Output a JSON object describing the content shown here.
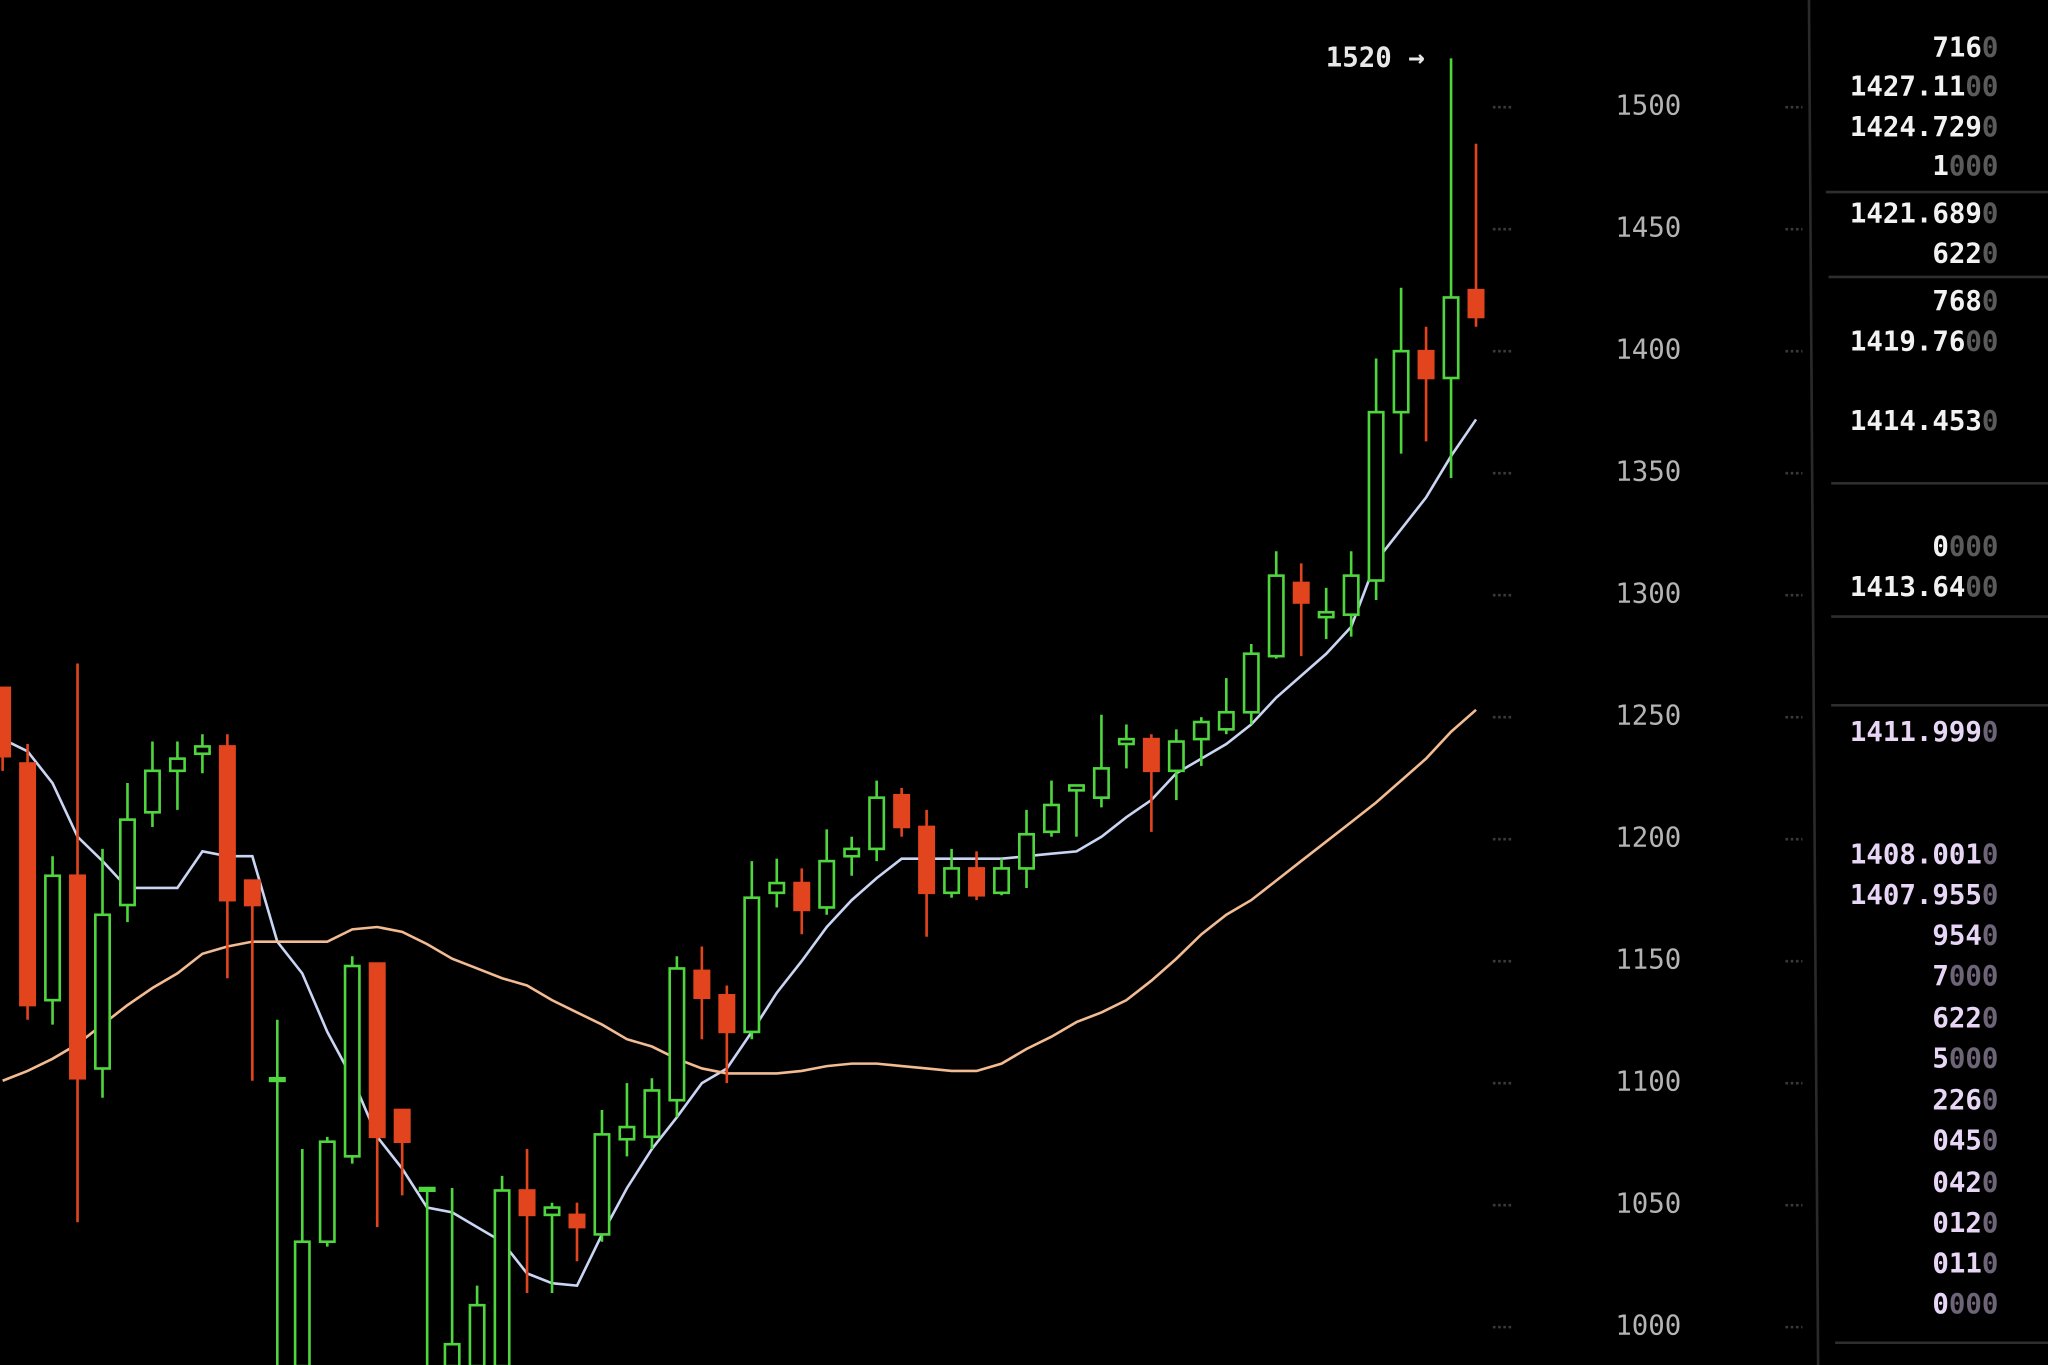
{
  "chart_data": {
    "type": "candlestick",
    "annotation": "1520 →",
    "up_color": "#4fd63e",
    "down_color": "#e2451e",
    "ylim": [
      984.5,
      1543.9
    ],
    "yticks": [
      1000,
      1050,
      1100,
      1150,
      1200,
      1250,
      1300,
      1350,
      1400,
      1450,
      1500
    ],
    "open": [
      1262,
      1231,
      1134,
      1185,
      1106,
      1173,
      1211,
      1228,
      1235,
      1238,
      1183,
      1102,
      984,
      1035,
      1070,
      1149,
      1089,
      1057,
      984,
      984,
      984,
      1056,
      1046,
      1046,
      1038,
      1077,
      1078,
      1093,
      1146,
      1136,
      1121,
      1178,
      1182,
      1172,
      1193,
      1196,
      1218,
      1205,
      1178,
      1188,
      1178,
      1188,
      1203,
      1220,
      1217,
      1239,
      1241,
      1228,
      1241,
      1245,
      1252,
      1275,
      1305,
      1291,
      1292,
      1306,
      1375,
      1400,
      1389,
      1425
    ],
    "high": [
      1262,
      1239,
      1193,
      1272,
      1196,
      1223,
      1240,
      1240,
      1243,
      1243,
      1183,
      1126,
      1073,
      1078,
      1152,
      1149,
      1089,
      1057,
      1057,
      1017,
      1062,
      1073,
      1051,
      1051,
      1089,
      1100,
      1102,
      1152,
      1156,
      1140,
      1191,
      1192,
      1188,
      1204,
      1201,
      1224,
      1221,
      1212,
      1196,
      1195,
      1192,
      1212,
      1224,
      1222,
      1251,
      1247,
      1243,
      1245,
      1250,
      1266,
      1280,
      1318,
      1313,
      1303,
      1318,
      1397,
      1426,
      1410,
      1520,
      1485
    ],
    "low": [
      1228,
      1126,
      1124,
      1043,
      1094,
      1166,
      1205,
      1212,
      1227,
      1143,
      1101,
      984,
      984,
      1033,
      1067,
      1041,
      1054,
      984,
      984,
      984,
      984,
      1014,
      1014,
      1027,
      1035,
      1070,
      1073,
      1086,
      1118,
      1100,
      1118,
      1172,
      1161,
      1169,
      1185,
      1191,
      1201,
      1160,
      1176,
      1175,
      1177,
      1180,
      1201,
      1201,
      1213,
      1229,
      1203,
      1216,
      1230,
      1243,
      1247,
      1274,
      1275,
      1282,
      1283,
      1298,
      1358,
      1363,
      1348,
      1410
    ],
    "close": [
      1234,
      1132,
      1185,
      1102,
      1169,
      1208,
      1228,
      1233,
      1238,
      1175,
      1173,
      1102,
      1035,
      1076,
      1148,
      1078,
      1076,
      1057,
      993,
      1009,
      1056,
      1046,
      1049,
      1041,
      1079,
      1082,
      1097,
      1147,
      1135,
      1121,
      1176,
      1182,
      1171,
      1191,
      1196,
      1217,
      1205,
      1178,
      1188,
      1177,
      1188,
      1202,
      1214,
      1222,
      1229,
      1241,
      1228,
      1240,
      1248,
      1252,
      1276,
      1308,
      1297,
      1293,
      1308,
      1375,
      1400,
      1389,
      1422,
      1414
    ],
    "moving_averages": [
      {
        "color": "#c9d5f2",
        "values": [
          1241,
          1236,
          1223,
          1201,
          1191,
          1180,
          1180,
          1180,
          1195,
          1193,
          1193,
          1158,
          1145,
          1121,
          1102,
          1078,
          1065,
          1049,
          1047,
          1041,
          1035,
          1022,
          1018,
          1017,
          1038,
          1057,
          1073,
          1086,
          1100,
          1106,
          1121,
          1137,
          1150,
          1164,
          1175,
          1184,
          1192,
          1192,
          1192,
          1192,
          1192,
          1193,
          1194,
          1195,
          1201,
          1209,
          1216,
          1227,
          1233,
          1239,
          1247,
          1258,
          1267,
          1276,
          1287,
          1314,
          1327,
          1340,
          1357,
          1372
        ]
      },
      {
        "color": "#f2bb92",
        "values": [
          1101,
          1105,
          1110,
          1116,
          1124,
          1132,
          1139,
          1145,
          1153,
          1156,
          1158,
          1158,
          1158,
          1158,
          1163,
          1164,
          1162,
          1157,
          1151,
          1147,
          1143,
          1140,
          1134,
          1129,
          1124,
          1118,
          1115,
          1110,
          1106,
          1104,
          1104,
          1104,
          1105,
          1107,
          1108,
          1108,
          1107,
          1106,
          1105,
          1105,
          1108,
          1114,
          1119,
          1125,
          1129,
          1134,
          1142,
          1151,
          1161,
          1169,
          1175,
          1183,
          1191,
          1199,
          1207,
          1215,
          1224,
          1233,
          1244,
          1253
        ]
      }
    ]
  },
  "order_book": {
    "rows": [
      {
        "text": "716",
        "faded": "0"
      },
      {
        "text": "1427.11",
        "faded": "00"
      },
      {
        "text": "1424.729",
        "faded": "0"
      },
      {
        "text": "1",
        "faded": "000"
      },
      {
        "text": "1421.689",
        "faded": "0"
      },
      {
        "text": "622",
        "faded": "0"
      },
      {
        "text": "768",
        "faded": "0"
      },
      {
        "text": "1419.76",
        "faded": "00"
      },
      {
        "text": "1414.453",
        "faded": "0"
      },
      {
        "text": "0",
        "faded": "000"
      },
      {
        "text": "1413.64",
        "faded": "00"
      },
      {
        "text": "1411.999",
        "faded": "0"
      },
      {
        "text": "1408.001",
        "faded": "0"
      },
      {
        "text": "1407.955",
        "faded": "0"
      },
      {
        "text": "954",
        "faded": "0"
      },
      {
        "text": "7",
        "faded": "000"
      },
      {
        "text": "622",
        "faded": "0"
      },
      {
        "text": "5",
        "faded": "000"
      },
      {
        "text": "226",
        "faded": "0"
      },
      {
        "text": "045",
        "faded": "0"
      },
      {
        "text": "042",
        "faded": "0"
      },
      {
        "text": "012",
        "faded": "0"
      },
      {
        "text": "011",
        "faded": "0"
      },
      {
        "text": "0",
        "faded": "000"
      }
    ]
  }
}
